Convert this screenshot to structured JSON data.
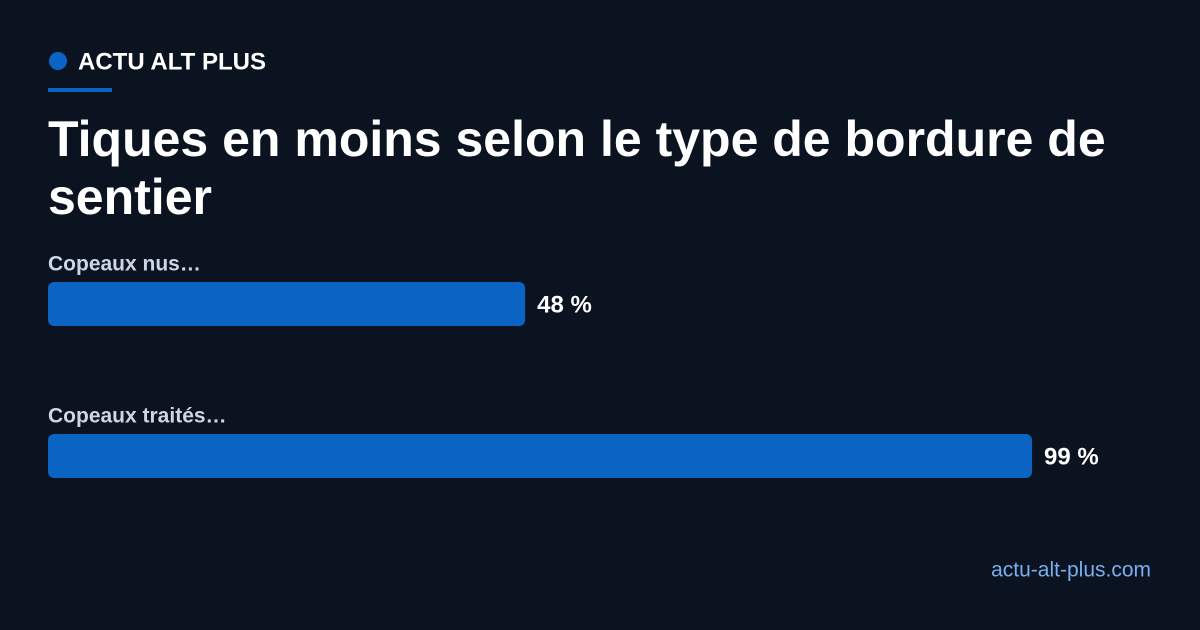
{
  "brand": "ACTU ALT PLUS",
  "footer": "actu-alt-plus.com",
  "chart_data": {
    "type": "bar",
    "orientation": "horizontal",
    "title": "Tiques en moins selon le type de bordure de sentier",
    "categories": [
      "Copeaux nus…",
      "Copeaux traités…"
    ],
    "values": [
      48,
      99
    ],
    "value_labels": [
      "48 %",
      "99 %"
    ],
    "color": "#0b63c4",
    "xlim": [
      0,
      100
    ]
  }
}
